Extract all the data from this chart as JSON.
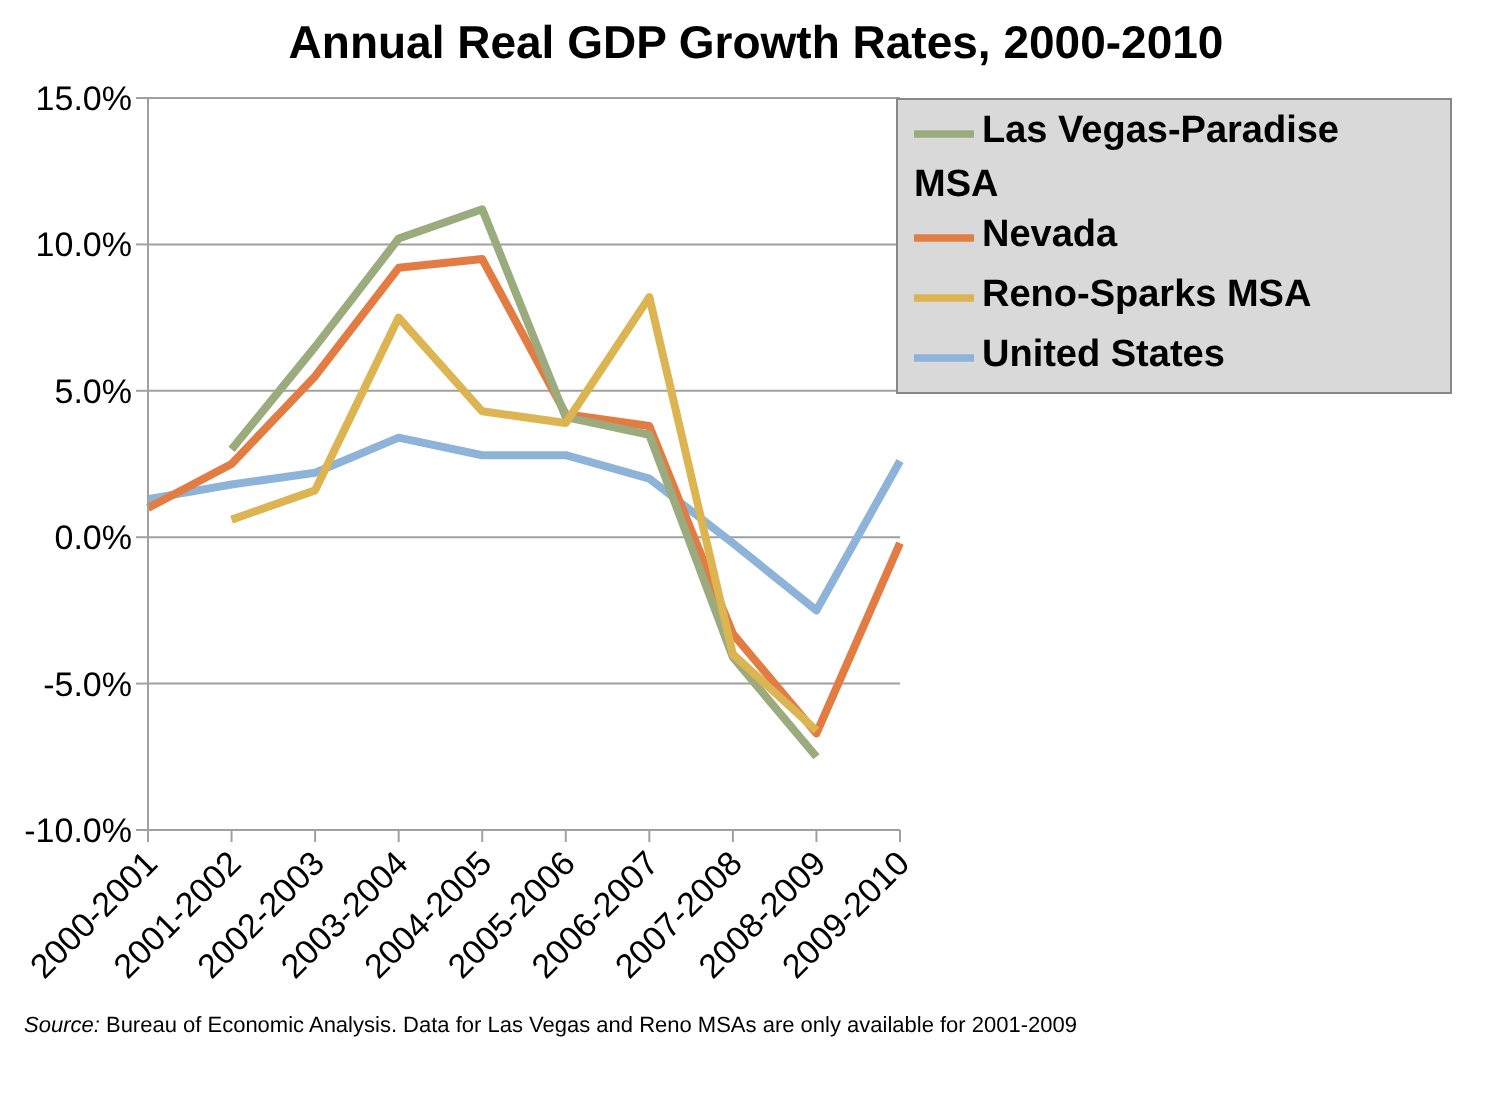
{
  "chart_data": {
    "type": "line",
    "title": "Annual Real GDP Growth Rates, 2000-2010",
    "categories": [
      "2000-2001",
      "2001-2002",
      "2002-2003",
      "2003-2004",
      "2004-2005",
      "2005-2006",
      "2006-2007",
      "2007-2008",
      "2008-2009",
      "2009-2010"
    ],
    "series": [
      {
        "name": "United States",
        "color": "#8db3d8",
        "values": [
          1.3,
          1.8,
          2.2,
          3.4,
          2.8,
          2.8,
          2.0,
          -0.2,
          -2.5,
          2.6
        ]
      },
      {
        "name": "Nevada",
        "color": "#e27c43",
        "values": [
          1.0,
          2.5,
          5.5,
          9.2,
          9.5,
          4.2,
          3.8,
          -3.3,
          -6.7,
          -0.2
        ]
      },
      {
        "name": "Las Vegas-Paradise MSA",
        "color": "#9cab7d",
        "values": [
          null,
          3.0,
          6.5,
          10.2,
          11.2,
          4.1,
          3.5,
          -4.1,
          -7.5,
          null
        ]
      },
      {
        "name": "Reno-Sparks MSA",
        "color": "#dcb452",
        "values": [
          null,
          0.6,
          1.6,
          7.5,
          4.3,
          3.9,
          8.2,
          -4.0,
          -6.6,
          null
        ]
      }
    ],
    "ylim": [
      -10,
      15
    ],
    "yticks": [
      {
        "value": -10,
        "label": "-10.0%"
      },
      {
        "value": -5,
        "label": "-5.0%"
      },
      {
        "value": 0,
        "label": "0.0%"
      },
      {
        "value": 5,
        "label": "5.0%"
      },
      {
        "value": 10,
        "label": "10.0%"
      },
      {
        "value": 15,
        "label": "15.0%"
      }
    ],
    "grid": "y",
    "legend": "top right",
    "marker": "none",
    "line_style": "solid",
    "annotations": [
      "Source: Bureau of Economic Analysis. Data for Las Vegas and Reno MSAs are only available for 2001-2009"
    ]
  }
}
